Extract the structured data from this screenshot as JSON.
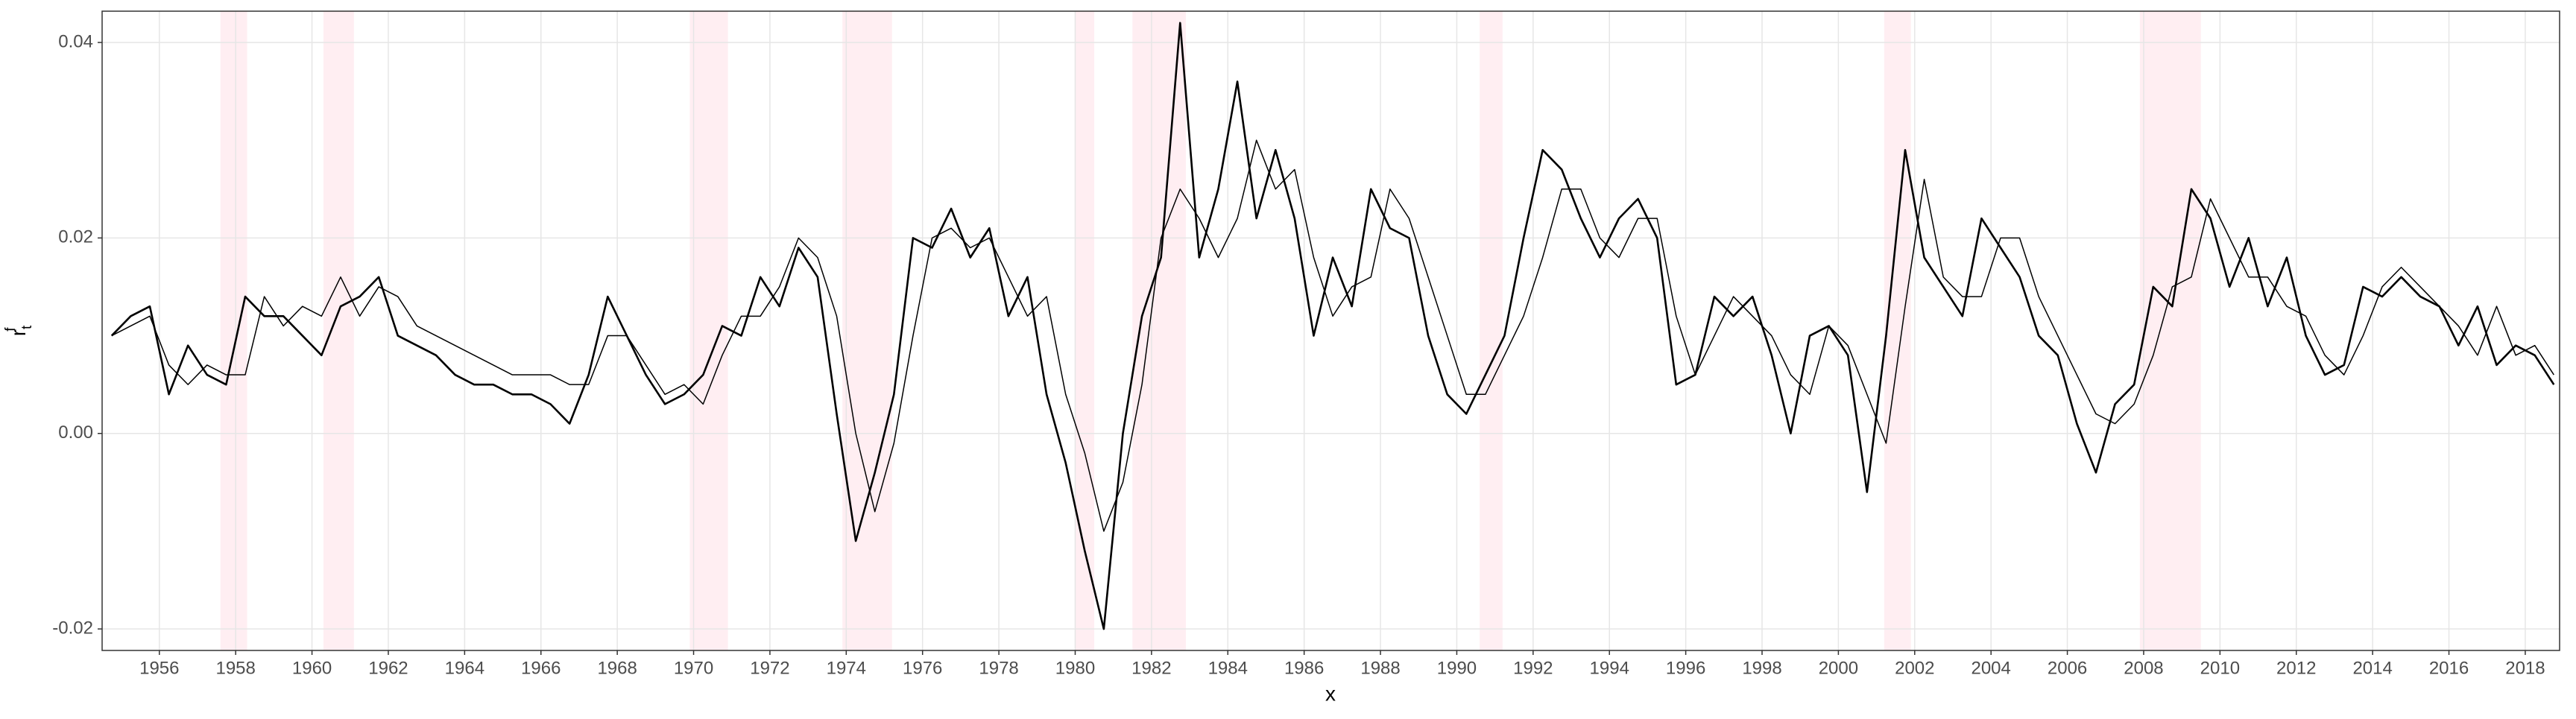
{
  "chart_data": {
    "type": "line",
    "xlabel": "x",
    "ylabel": {
      "base": "r",
      "sub": "t",
      "sup": "f"
    },
    "xlim": [
      1954.5,
      2018.9
    ],
    "ylim": [
      -0.0222,
      0.0432
    ],
    "xticks": [
      1956,
      1958,
      1960,
      1962,
      1964,
      1966,
      1968,
      1970,
      1972,
      1974,
      1976,
      1978,
      1980,
      1982,
      1984,
      1986,
      1988,
      1990,
      1992,
      1994,
      1996,
      1998,
      2000,
      2002,
      2004,
      2006,
      2008,
      2010,
      2012,
      2014,
      2016,
      2018
    ],
    "yticks": [
      {
        "value": -0.02,
        "label": "-0.02"
      },
      {
        "value": 0,
        "label": "0.00"
      },
      0.02,
      0.04
    ],
    "grid": true,
    "recession_color": "#ffeef2",
    "recessions": [
      [
        1957.6,
        1958.3
      ],
      [
        1960.3,
        1961.1
      ],
      [
        1969.9,
        1970.9
      ],
      [
        1973.9,
        1975.2
      ],
      [
        1980.0,
        1980.5
      ],
      [
        1981.5,
        1982.9
      ],
      [
        1990.6,
        1991.2
      ],
      [
        2001.2,
        2001.9
      ],
      [
        2007.9,
        2009.5
      ]
    ],
    "x": [
      1954.75,
      1955.25,
      1955.75,
      1956.25,
      1956.75,
      1957.25,
      1957.75,
      1958.25,
      1958.75,
      1959.25,
      1959.75,
      1960.25,
      1960.75,
      1961.25,
      1961.75,
      1962.25,
      1962.75,
      1963.25,
      1963.75,
      1964.25,
      1964.75,
      1965.25,
      1965.75,
      1966.25,
      1966.75,
      1967.25,
      1967.75,
      1968.25,
      1968.75,
      1969.25,
      1969.75,
      1970.25,
      1970.75,
      1971.25,
      1971.75,
      1972.25,
      1972.75,
      1973.25,
      1973.75,
      1974.25,
      1974.75,
      1975.25,
      1975.75,
      1976.25,
      1976.75,
      1977.25,
      1977.75,
      1978.25,
      1978.75,
      1979.25,
      1979.75,
      1980.25,
      1980.75,
      1981.25,
      1981.75,
      1982.25,
      1982.75,
      1983.25,
      1983.75,
      1984.25,
      1984.75,
      1985.25,
      1985.75,
      1986.25,
      1986.75,
      1987.25,
      1987.75,
      1988.25,
      1988.75,
      1989.25,
      1989.75,
      1990.25,
      1990.75,
      1991.25,
      1991.75,
      1992.25,
      1992.75,
      1993.25,
      1993.75,
      1994.25,
      1994.75,
      1995.25,
      1995.75,
      1996.25,
      1996.75,
      1997.25,
      1997.75,
      1998.25,
      1998.75,
      1999.25,
      1999.75,
      2000.25,
      2000.75,
      2001.25,
      2001.75,
      2002.25,
      2002.75,
      2003.25,
      2003.75,
      2004.25,
      2004.75,
      2005.25,
      2005.75,
      2006.25,
      2006.75,
      2007.25,
      2007.75,
      2008.25,
      2008.75,
      2009.25,
      2009.75,
      2010.25,
      2010.75,
      2011.25,
      2011.75,
      2012.25,
      2012.75,
      2013.25,
      2013.75,
      2014.25,
      2014.75,
      2015.25,
      2015.75,
      2016.25,
      2016.75,
      2017.25,
      2017.75,
      2018.25,
      2018.75
    ],
    "series": [
      {
        "color": "#000000",
        "width": 2.6,
        "values": [
          0.01,
          0.012,
          0.013,
          0.004,
          0.009,
          0.006,
          0.005,
          0.014,
          0.012,
          0.012,
          0.01,
          0.008,
          0.013,
          0.014,
          0.016,
          0.01,
          0.009,
          0.008,
          0.006,
          0.005,
          0.005,
          0.004,
          0.004,
          0.003,
          0.001,
          0.006,
          0.014,
          0.01,
          0.006,
          0.003,
          0.004,
          0.006,
          0.011,
          0.01,
          0.016,
          0.013,
          0.019,
          0.016,
          0.002,
          -0.011,
          -0.004,
          0.004,
          0.02,
          0.019,
          0.023,
          0.018,
          0.021,
          0.012,
          0.016,
          0.004,
          -0.003,
          -0.012,
          -0.02,
          0.0,
          0.012,
          0.018,
          0.042,
          0.018,
          0.025,
          0.036,
          0.022,
          0.029,
          0.022,
          0.01,
          0.018,
          0.013,
          0.025,
          0.021,
          0.02,
          0.01,
          0.004,
          0.002,
          0.006,
          0.01,
          0.02,
          0.029,
          0.027,
          0.022,
          0.018,
          0.022,
          0.024,
          0.02,
          0.005,
          0.006,
          0.014,
          0.012,
          0.014,
          0.008,
          0.0,
          0.01,
          0.011,
          0.008,
          -0.006,
          0.01,
          0.029,
          0.018,
          0.015,
          0.012,
          0.022,
          0.019,
          0.016,
          0.01,
          0.008,
          0.001,
          -0.004,
          0.003,
          0.005,
          0.015,
          0.013,
          0.025,
          0.022,
          0.015,
          0.02,
          0.013,
          0.018,
          0.01,
          0.006,
          0.007,
          0.015,
          0.014,
          0.016,
          0.014,
          0.013,
          0.009,
          0.013,
          0.007,
          0.009,
          0.008,
          0.005
        ]
      },
      {
        "color": "#000000",
        "width": 1.5,
        "values": [
          0.01,
          0.011,
          0.012,
          0.007,
          0.005,
          0.007,
          0.006,
          0.006,
          0.014,
          0.011,
          0.013,
          0.012,
          0.016,
          0.012,
          0.015,
          0.014,
          0.011,
          0.01,
          0.009,
          0.008,
          0.007,
          0.006,
          0.006,
          0.006,
          0.005,
          0.005,
          0.01,
          0.01,
          0.007,
          0.004,
          0.005,
          0.003,
          0.008,
          0.012,
          0.012,
          0.015,
          0.02,
          0.018,
          0.012,
          0.0,
          -0.008,
          -0.001,
          0.01,
          0.02,
          0.021,
          0.019,
          0.02,
          0.016,
          0.012,
          0.014,
          0.004,
          -0.002,
          -0.01,
          -0.005,
          0.005,
          0.02,
          0.025,
          0.022,
          0.018,
          0.022,
          0.03,
          0.025,
          0.027,
          0.018,
          0.012,
          0.015,
          0.016,
          0.025,
          0.022,
          0.016,
          0.01,
          0.004,
          0.004,
          0.008,
          0.012,
          0.018,
          0.025,
          0.025,
          0.02,
          0.018,
          0.022,
          0.022,
          0.012,
          0.006,
          0.01,
          0.014,
          0.012,
          0.01,
          0.006,
          0.004,
          0.011,
          0.009,
          0.004,
          -0.001,
          0.013,
          0.026,
          0.016,
          0.014,
          0.014,
          0.02,
          0.02,
          0.014,
          0.01,
          0.006,
          0.002,
          0.001,
          0.003,
          0.008,
          0.015,
          0.016,
          0.024,
          0.02,
          0.016,
          0.016,
          0.013,
          0.012,
          0.008,
          0.006,
          0.01,
          0.015,
          0.017,
          0.015,
          0.013,
          0.011,
          0.008,
          0.013,
          0.008,
          0.009,
          0.006
        ]
      }
    ]
  }
}
